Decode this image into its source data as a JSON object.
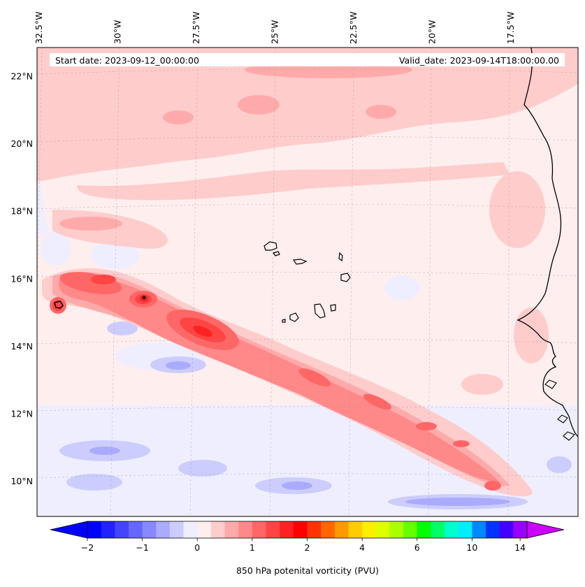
{
  "header": {
    "start_date": "Start date: 2023-09-12_00:00:00",
    "valid_date": "Valid_date: 2023-09-14T18:00:00.00"
  },
  "map": {
    "lon_labels": [
      "32.5°W",
      "30°W",
      "27.5°W",
      "25°W",
      "22.5°W",
      "20°W",
      "17.5°W"
    ],
    "lat_labels": [
      "22°N",
      "20°N",
      "18°N",
      "16°N",
      "14°N",
      "12°N",
      "10°N"
    ],
    "lon_ticks_deg": [
      -32.5,
      -30,
      -27.5,
      -25,
      -22.5,
      -20,
      -17.5
    ],
    "lat_ticks_deg": [
      22,
      20,
      18,
      16,
      14,
      12,
      10
    ],
    "extent": {
      "lon_min": -32.5,
      "lon_max": -15.3,
      "lat_min": 8.9,
      "lat_max": 22.8
    },
    "gridlines": true,
    "field": "850 hPa potential vorticity",
    "projection": "lambert-conformal-like"
  },
  "colorbar": {
    "label": "850 hPa potenital vorticity (PVU)",
    "tick_labels": [
      "−2",
      "−1",
      "0",
      "1",
      "2",
      "4",
      "6",
      "10",
      "14"
    ],
    "colors": [
      "#0000ff",
      "#2222ff",
      "#4444ff",
      "#6666ff",
      "#8888ff",
      "#aaaaff",
      "#ccccff",
      "#eeeeff",
      "#ffeeee",
      "#ffcccc",
      "#ffaaaa",
      "#ff8888",
      "#ff6666",
      "#ff4444",
      "#ff2222",
      "#ff0000",
      "#ff3300",
      "#ff6600",
      "#ff9900",
      "#ffcc00",
      "#ffee00",
      "#ddff00",
      "#aaff00",
      "#66ff00",
      "#00ff00",
      "#00ff66",
      "#00ffcc",
      "#00eeff",
      "#0088ff",
      "#0033ff",
      "#4400ff",
      "#9900ff"
    ],
    "extend_min_color": "#0000ff",
    "extend_max_color": "#cc00ff"
  },
  "islands": [
    "Santo Antão",
    "São Vicente",
    "São Nicolau",
    "Sal",
    "Boa Vista",
    "Maio",
    "Santiago",
    "Fogo",
    "Brava"
  ]
}
